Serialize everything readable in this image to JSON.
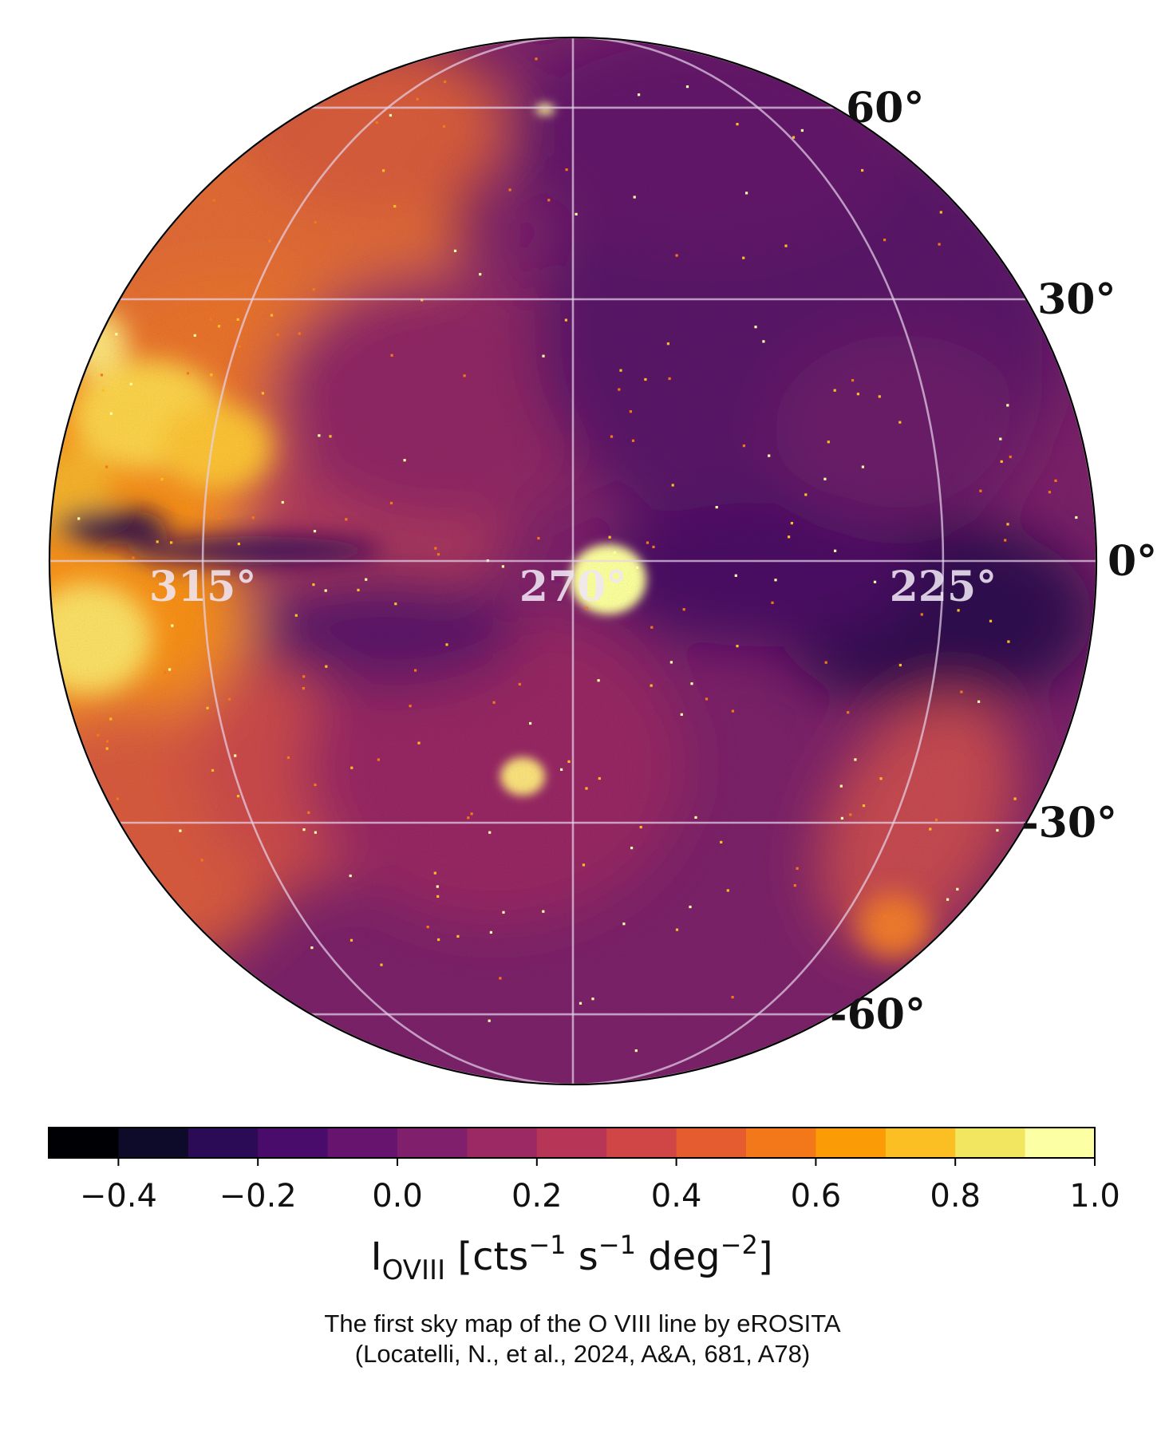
{
  "map": {
    "projection": "orthographic",
    "center_longitude_deg": 270,
    "center_latitude_deg": 0,
    "longitude_direction": "increasing to the left",
    "graticule": {
      "latitudes_deg": [
        -60,
        -30,
        0,
        30,
        60
      ],
      "longitudes_deg": [
        180,
        225,
        270,
        315,
        360
      ]
    },
    "latitude_labels": [
      {
        "value": 60,
        "text": "60°"
      },
      {
        "value": 30,
        "text": "30°"
      },
      {
        "value": 0,
        "text": "0°"
      },
      {
        "value": -30,
        "text": "-30°"
      },
      {
        "value": -60,
        "text": "-60°"
      }
    ],
    "longitude_labels": [
      {
        "value": 315,
        "text": "315°"
      },
      {
        "value": 270,
        "text": "270°"
      },
      {
        "value": 225,
        "text": "225°"
      }
    ],
    "colormap": "inferno",
    "grid_color": "#e6d3ea"
  },
  "colorbar": {
    "min": -0.5,
    "max": 1.0,
    "step": 0.1,
    "ticks": [
      {
        "value": -0.4,
        "text": "−0.4"
      },
      {
        "value": -0.2,
        "text": "−0.2"
      },
      {
        "value": 0.0,
        "text": "0.0"
      },
      {
        "value": 0.2,
        "text": "0.2"
      },
      {
        "value": 0.4,
        "text": "0.4"
      },
      {
        "value": 0.6,
        "text": "0.6"
      },
      {
        "value": 0.8,
        "text": "0.8"
      },
      {
        "value": 1.0,
        "text": "1.0"
      }
    ],
    "colors": [
      "#000004",
      "#0e0a2a",
      "#2b0b56",
      "#4a0c6b",
      "#66146e",
      "#801f6c",
      "#9c2964",
      "#b73557",
      "#d04545",
      "#e55c30",
      "#f37819",
      "#fb9b06",
      "#fbbe23",
      "#f2e661",
      "#fcffa4"
    ],
    "label": {
      "symbol": "I",
      "subscript": "OVIII",
      "unit_text": " [cts",
      "exp1": "−1",
      "mid_text": " s",
      "exp2": "−1",
      "mid_text2": " deg",
      "exp3": "−2",
      "close_text": "]"
    }
  },
  "caption": {
    "line1": "The first sky map of the O VIII line by eROSITA",
    "line2": "(Locatelli, N., et al., 2024, A&A, 681, A78)"
  }
}
